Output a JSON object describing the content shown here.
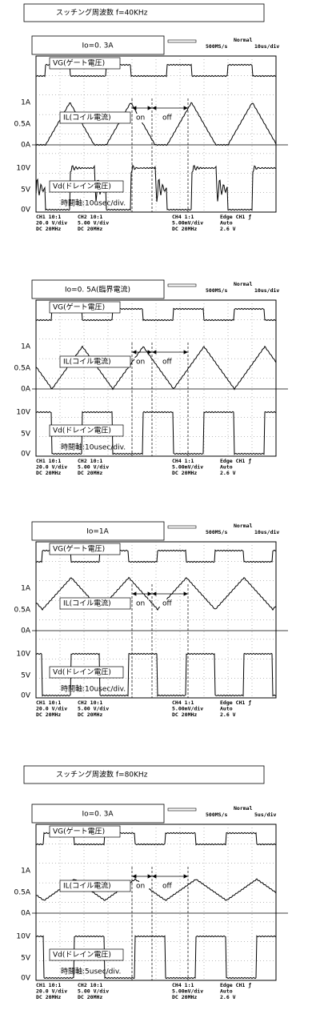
{
  "sections": [
    {
      "title": "スッチング周波数 f=40KHz",
      "panels": [
        {
          "label": "Io=0. 3A",
          "scale_labels": [
            "1A",
            "0.5A",
            "0A",
            "10V",
            "5V",
            "0V"
          ],
          "vg": "VG(ゲート電圧)",
          "il": "IL(コイル電流)",
          "vd": "Vd(ドレイン電圧)",
          "on": "on",
          "off": "off",
          "timebase": "時間軸:10usec/div.",
          "scope_top": [
            "Normal",
            "500MS/s",
            "10us/div"
          ],
          "channels": [
            [
              "CH1 10:1",
              "20.0 V/div",
              "DC  20MHz"
            ],
            [
              "CH2 10:1",
              "5.00 V/div",
              "DC  20MHz"
            ],
            [
              "CH4 1:1",
              "5.00mV/div",
              "DC  20MHz"
            ],
            [
              "Edge CH1 ƒ",
              "Auto",
              "2.6 V"
            ]
          ]
        },
        {
          "label": "Io=0. 5A(臨界電流)",
          "scale_labels": [
            "1A",
            "0.5A",
            "0A",
            "10V",
            "5V",
            "0V"
          ],
          "vg": "VG(ゲート電圧)",
          "il": "IL(コイル電流)",
          "vd": "Vd(ドレイン電圧)",
          "on": "on",
          "off": "off",
          "timebase": "時間軸:10usec/div.",
          "scope_top": [
            "Normal",
            "500MS/s",
            "10us/div"
          ],
          "channels": [
            [
              "CH1 10:1",
              "20.0 V/div",
              "DC  20MHz"
            ],
            [
              "CH2 10:1",
              "5.00 V/div",
              "DC  20MHz"
            ],
            [
              "CH4 1:1",
              "5.00mV/div",
              "DC  20MHz"
            ],
            [
              "Edge CH1 ƒ",
              "Auto",
              "2.6 V"
            ]
          ]
        },
        {
          "label": "Io=1A",
          "scale_labels": [
            "1A",
            "0.5A",
            "0A",
            "10V",
            "5V",
            "0V"
          ],
          "vg": "VG(ゲート電圧)",
          "il": "IL(コイル電流)",
          "vd": "Vd(ドレイン電圧)",
          "on": "on",
          "off": "off",
          "timebase": "時間軸:10usec/div.",
          "scope_top": [
            "Normal",
            "500MS/s",
            "10us/div"
          ],
          "channels": [
            [
              "CH1 10:1",
              "20.0 V/div",
              "DC  20MHz"
            ],
            [
              "CH2 10:1",
              "5.00 V/div",
              "DC  20MHz"
            ],
            [
              "CH4 1:1",
              "5.00mV/div",
              "DC  20MHz"
            ],
            [
              "Edge CH1 ƒ",
              "Auto",
              "2.6 V"
            ]
          ]
        }
      ]
    },
    {
      "title": "スッチング周波数 f=80KHz",
      "panels": [
        {
          "label": "Io=0. 3A",
          "scale_labels": [
            "1A",
            "0.5A",
            "0A",
            "10V",
            "5V",
            "0V"
          ],
          "vg": "VG(ゲート電圧)",
          "il": "IL(コイル電流)",
          "vd": "Vd(ドレイン電圧)",
          "on": "on",
          "off": "off",
          "timebase": "時間軸:5usec/div.",
          "scope_top": [
            "Normal",
            "500MS/s",
            "5us/div"
          ],
          "channels": [
            [
              "CH1 10:1",
              "20.0 V/div",
              "DC  20MHz"
            ],
            [
              "CH2 10:1",
              "5.00 V/div",
              "DC  20MHz"
            ],
            [
              "CH4 1:1",
              "5.00mV/div",
              "DC  20MHz"
            ],
            [
              "Edge CH1 ƒ",
              "Auto",
              "2.6 V"
            ]
          ]
        }
      ]
    }
  ]
}
